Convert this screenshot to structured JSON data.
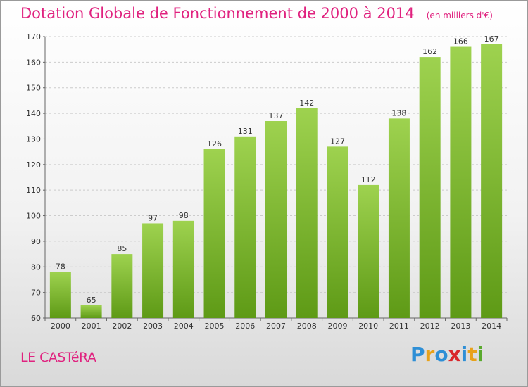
{
  "chart_data": {
    "type": "bar",
    "title": "Dotation Globale de Fonctionnement de 2000 à 2014",
    "unit": "(en milliers d'€)",
    "categories": [
      "2000",
      "2001",
      "2002",
      "2003",
      "2004",
      "2005",
      "2006",
      "2007",
      "2008",
      "2009",
      "2010",
      "2011",
      "2012",
      "2013",
      "2014"
    ],
    "values": [
      78,
      65,
      85,
      97,
      98,
      126,
      131,
      137,
      142,
      127,
      112,
      138,
      162,
      166,
      167
    ],
    "ylim": [
      60,
      170
    ],
    "yticks": [
      60,
      70,
      80,
      90,
      100,
      110,
      120,
      130,
      140,
      150,
      160,
      170
    ],
    "grid": true,
    "colors": {
      "bar_top": "#9ed24f",
      "bar_bottom": "#5e9a16",
      "grid": "#cccccc",
      "text_accent": "#e0227f"
    }
  },
  "footer": {
    "commune": "LE CASTéRA",
    "logo_text": "Proxiti",
    "logo_colors": [
      "#2e8fd6",
      "#e8a21a",
      "#2e8fd6",
      "#d9262b",
      "#2e8fd6",
      "#e8a21a",
      "#5aaa2e"
    ]
  }
}
